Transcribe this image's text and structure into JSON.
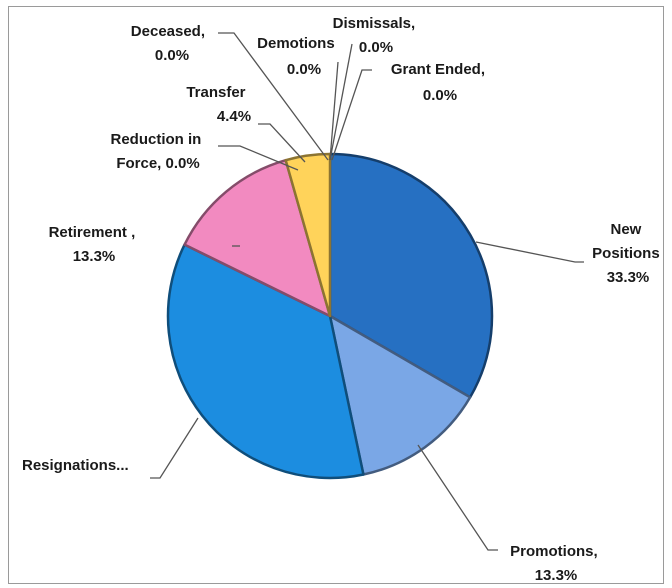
{
  "chart_data": {
    "type": "pie",
    "title": "",
    "slices": [
      {
        "label": "New Positions",
        "value": 33.3,
        "pct_text": "33.3%",
        "color": "#2670c2"
      },
      {
        "label": "Promotions",
        "value": 13.3,
        "pct_text": "13.3%",
        "color": "#7aa7e6"
      },
      {
        "label": "Resignations",
        "value": 35.5,
        "pct_text": "",
        "color": "#1c8de0"
      },
      {
        "label": "Retirement",
        "value": 13.3,
        "pct_text": "13.3%",
        "color": "#f28ac0"
      },
      {
        "label": "Reduction in Force",
        "value": 0.0,
        "pct_text": "0.0%",
        "color": "#9ad14a"
      },
      {
        "label": "Transfer",
        "value": 4.4,
        "pct_text": "4.4%",
        "color": "#ffd35a"
      },
      {
        "label": "Deceased",
        "value": 0.0,
        "pct_text": "0.0%",
        "color": "#888888"
      },
      {
        "label": "Demotions",
        "value": 0.0,
        "pct_text": "0.0%",
        "color": "#888888"
      },
      {
        "label": "Dismissals",
        "value": 0.0,
        "pct_text": "0.0%",
        "color": "#888888"
      },
      {
        "label": "Grant Ended",
        "value": 0.0,
        "pct_text": "0.0%",
        "color": "#888888"
      }
    ],
    "labels": {
      "new_positions": [
        "New",
        "Positions",
        "33.3%"
      ],
      "promotions": [
        "Promotions,",
        "13.3%"
      ],
      "resignations": [
        "Resignations..."
      ],
      "retirement": [
        "Retirement ,",
        "13.3%"
      ],
      "reduction": [
        "Reduction in",
        "Force, 0.0%"
      ],
      "transfer": [
        "Transfer",
        "4.4%"
      ],
      "deceased": [
        "Deceased,",
        "0.0%"
      ],
      "demotions": [
        "Demotions",
        "0.0%"
      ],
      "dismissals": [
        "Dismissals,",
        "0.0%"
      ],
      "grant_ended": [
        "Grant Ended,",
        "0.0%"
      ]
    }
  }
}
